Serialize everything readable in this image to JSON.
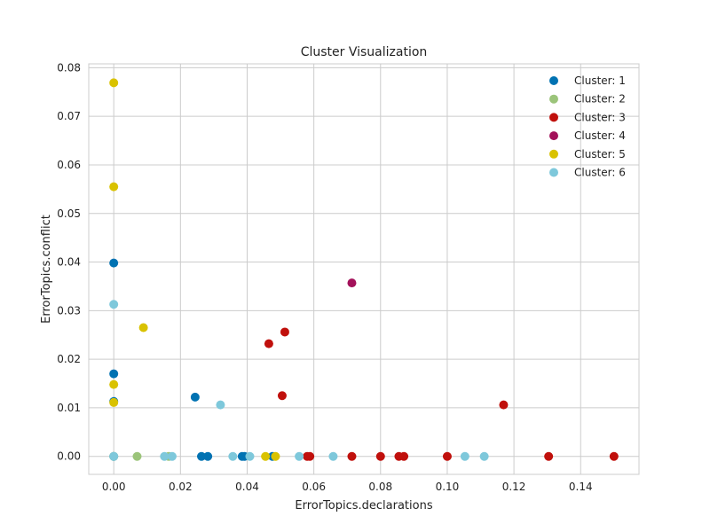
{
  "chart_data": {
    "type": "scatter",
    "title": "Cluster Visualization",
    "xlabel": "ErrorTopics.declarations",
    "ylabel": "ErrorTopics.conflict",
    "xlim": [
      -0.0075,
      0.1575
    ],
    "ylim": [
      -0.0037,
      0.0808
    ],
    "xticks": [
      0.0,
      0.02,
      0.04,
      0.06,
      0.08,
      0.1,
      0.12,
      0.14
    ],
    "yticks": [
      0.0,
      0.01,
      0.02,
      0.03,
      0.04,
      0.05,
      0.06,
      0.07,
      0.08
    ],
    "tick_format_decimals": 2,
    "grid": true,
    "legend_position": "top-right",
    "series": [
      {
        "name": "Cluster: 1",
        "color": "#0072B2",
        "points": [
          [
            0.0,
            0.0398
          ],
          [
            0.0,
            0.017
          ],
          [
            0.0,
            0.0113
          ],
          [
            0.0,
            0.0
          ],
          [
            0.0244,
            0.0122
          ],
          [
            0.0263,
            0.0
          ],
          [
            0.0282,
            0.0
          ],
          [
            0.0385,
            0.0
          ],
          [
            0.0392,
            0.0
          ],
          [
            0.0476,
            0.0
          ]
        ]
      },
      {
        "name": "Cluster: 2",
        "color": "#9BC47A",
        "points": [
          [
            0.0,
            0.0
          ],
          [
            0.007,
            0.0
          ],
          [
            0.0165,
            0.0
          ]
        ]
      },
      {
        "name": "Cluster: 3",
        "color": "#C0100C",
        "points": [
          [
            0.0465,
            0.0232
          ],
          [
            0.0513,
            0.0256
          ],
          [
            0.0505,
            0.0125
          ],
          [
            0.058,
            0.0
          ],
          [
            0.0588,
            0.0
          ],
          [
            0.0714,
            0.0
          ],
          [
            0.08,
            0.0
          ],
          [
            0.0855,
            0.0
          ],
          [
            0.087,
            0.0
          ],
          [
            0.1,
            0.0
          ],
          [
            0.1169,
            0.0106
          ],
          [
            0.1304,
            0.0
          ],
          [
            0.15,
            0.0
          ]
        ]
      },
      {
        "name": "Cluster: 4",
        "color": "#A3115A",
        "points": [
          [
            0.0714,
            0.0357
          ]
        ]
      },
      {
        "name": "Cluster: 5",
        "color": "#D9C200",
        "points": [
          [
            0.0,
            0.0769
          ],
          [
            0.0,
            0.0555
          ],
          [
            0.0,
            0.0148
          ],
          [
            0.0,
            0.0111
          ],
          [
            0.0089,
            0.0265
          ],
          [
            0.0455,
            0.0
          ],
          [
            0.0485,
            0.0
          ]
        ]
      },
      {
        "name": "Cluster: 6",
        "color": "#7EC8DB",
        "points": [
          [
            0.0,
            0.0313
          ],
          [
            0.0,
            0.0
          ],
          [
            0.0152,
            0.0
          ],
          [
            0.0175,
            0.0
          ],
          [
            0.032,
            0.0106
          ],
          [
            0.0357,
            0.0
          ],
          [
            0.0408,
            0.0
          ],
          [
            0.0556,
            0.0
          ],
          [
            0.0658,
            0.0
          ],
          [
            0.1053,
            0.0
          ],
          [
            0.1111,
            0.0
          ]
        ]
      }
    ]
  }
}
